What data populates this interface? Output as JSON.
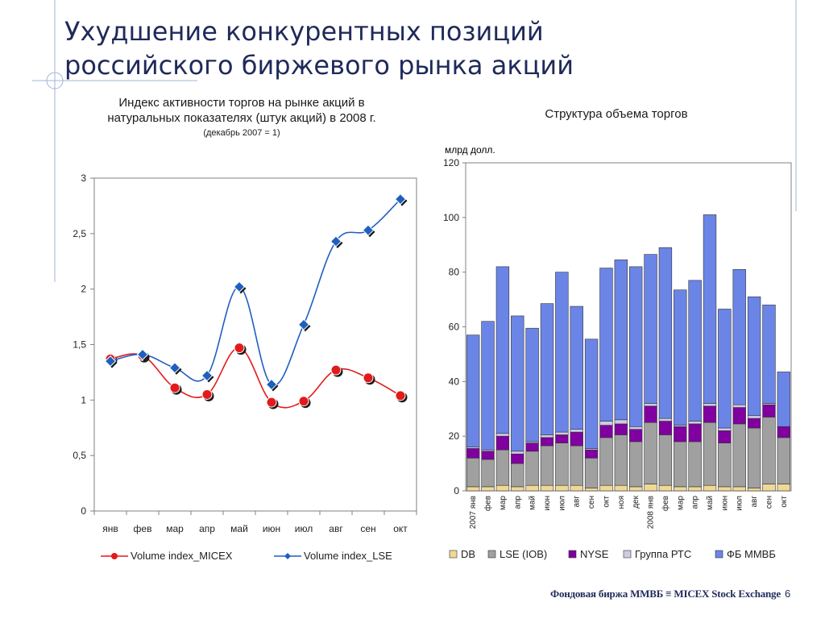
{
  "slide": {
    "title": "Ухудшение конкурентных позиций российского биржевого рынка акций",
    "page_number": "6",
    "footer_logo": "Фондовая биржа ММВБ ≡ MICEX Stock Exchange"
  },
  "chart_data": [
    {
      "type": "line",
      "title": "Индекс активности торгов на рынке акций в натуральных показателях (штук акций) в 2008 г.",
      "subtitle": "(декабрь 2007 = 1)",
      "categories": [
        "янв",
        "фев",
        "мар",
        "апр",
        "май",
        "июн",
        "июл",
        "авг",
        "сен",
        "окт"
      ],
      "ylim": [
        0,
        3
      ],
      "yticks": [
        "0",
        "0,5",
        "1",
        "1,5",
        "2",
        "2,5",
        "3"
      ],
      "legend_position": "bottom",
      "series": [
        {
          "name": "Volume index_MICEX",
          "color": "#e31a1c",
          "values": [
            1.37,
            1.4,
            1.11,
            1.05,
            1.47,
            0.98,
            0.99,
            1.27,
            1.2,
            1.04
          ]
        },
        {
          "name": "Volume index_LSE",
          "color": "#1f5fbf",
          "values": [
            1.35,
            1.41,
            1.29,
            1.22,
            2.02,
            1.14,
            1.68,
            2.43,
            2.53,
            2.81
          ]
        }
      ]
    },
    {
      "type": "bar",
      "stacked": true,
      "title": "Структура объема торгов",
      "ylabel": "млрд долл.",
      "ylim": [
        0,
        120
      ],
      "yticks": [
        "0",
        "20",
        "40",
        "60",
        "80",
        "100",
        "120"
      ],
      "categories": [
        "2007 янв",
        "фев",
        "мар",
        "апр",
        "май",
        "июн",
        "июл",
        "авг",
        "сен",
        "окт",
        "ноя",
        "дек",
        "2008 янв",
        "фев",
        "мар",
        "апр",
        "май",
        "июн",
        "июл",
        "авг",
        "сен",
        "окт"
      ],
      "legend_position": "bottom",
      "series": [
        {
          "name": "DB",
          "color": "#f0d896",
          "values": [
            1.5,
            1.5,
            2,
            1.5,
            2,
            2,
            2,
            2,
            1,
            2,
            2,
            1.5,
            2.5,
            2,
            1.5,
            1.5,
            2,
            1.5,
            1.5,
            1,
            2.5,
            2.5
          ]
        },
        {
          "name": "LSE (IOB)",
          "color": "#a0a0a0",
          "values": [
            10.5,
            10,
            13,
            8.5,
            12.5,
            14.5,
            15.5,
            14.5,
            11,
            17.5,
            18.5,
            16.5,
            22.5,
            18.5,
            16.5,
            16.5,
            23,
            16,
            23,
            22,
            24.5,
            17
          ]
        },
        {
          "name": "NYSE",
          "color": "#8000a0",
          "values": [
            3.5,
            3,
            5,
            3.5,
            3,
            3,
            3,
            5,
            3,
            4.5,
            4,
            4.5,
            6,
            5,
            5.5,
            6.5,
            6,
            4.5,
            6,
            3.5,
            4.5,
            4
          ]
        },
        {
          "name": "Группа РТС",
          "color": "#cccce6",
          "values": [
            0.5,
            0.5,
            1,
            1,
            0.5,
            1,
            1,
            1,
            0.5,
            1.5,
            1.5,
            1,
            1,
            1,
            0.5,
            1,
            1,
            1,
            1,
            1,
            0.5,
            0
          ]
        },
        {
          "name": "ФБ ММВБ",
          "color": "#6b85e6",
          "values": [
            41,
            47,
            61,
            49.5,
            41.5,
            48,
            58.5,
            45,
            40,
            56,
            58.5,
            58.5,
            54.5,
            62.5,
            49.5,
            51.5,
            69,
            43.5,
            49.5,
            43.5,
            36,
            20
          ]
        }
      ]
    }
  ]
}
